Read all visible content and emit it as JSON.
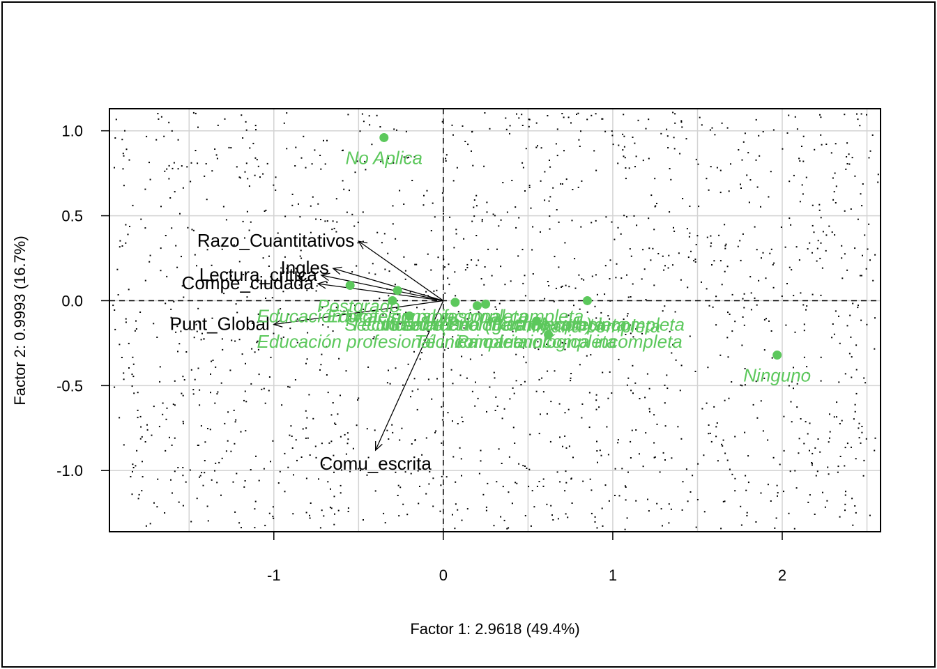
{
  "chart_data": {
    "type": "scatter",
    "title": "",
    "xlabel": "Factor 1: 2.9618 (49.4%)",
    "ylabel": "Factor 2: 0.9993 (16.7%)",
    "xlim": [
      -1.97,
      2.58
    ],
    "ylim": [
      -1.36,
      1.13
    ],
    "xticks": [
      -1,
      0,
      1,
      2
    ],
    "yticks": [
      1.0,
      0.5,
      0.0,
      -0.5,
      -1.0
    ],
    "xtick_labels": [
      "-1",
      "0",
      "1",
      "2"
    ],
    "ytick_labels": [
      "1.0",
      "0.5",
      "0.0",
      "-0.5",
      "-1.0"
    ],
    "grid": true,
    "reference_lines": {
      "x": 0,
      "y": 0,
      "style": "dashed"
    },
    "colors": {
      "categories": "#5cc85c",
      "variables": "#000000",
      "grid": "#d3d3d3"
    },
    "variables": [
      {
        "name": "Razo_Cuantitativos",
        "x": -0.5,
        "y": 0.35
      },
      {
        "name": "Ingles",
        "x": -0.65,
        "y": 0.19
      },
      {
        "name": "Lectura_critica",
        "x": -0.72,
        "y": 0.15
      },
      {
        "name": "Compe_ciudada",
        "x": -0.74,
        "y": 0.1
      },
      {
        "name": "Punt_Global",
        "x": -1.0,
        "y": -0.14
      },
      {
        "name": "Comu_escrita",
        "x": -0.4,
        "y": -0.88
      }
    ],
    "categories": [
      {
        "name": "No Aplica",
        "x": -0.35,
        "y": 0.96
      },
      {
        "name": "Ninguno",
        "x": 1.97,
        "y": -0.32
      },
      {
        "name": "Postgrado",
        "x": -0.55,
        "y": 0.09
      },
      {
        "name": "Educación profesional completa",
        "x": 0.07,
        "y": -0.01
      },
      {
        "name": "Educación profesional incompleta",
        "x": -0.3,
        "y": 0.0
      },
      {
        "name": "Técnica o tecnológica completa",
        "x": -0.27,
        "y": 0.06
      },
      {
        "name": "Técnica o tecnológica incompleta",
        "x": 0.2,
        "y": -0.03
      },
      {
        "name": "Secundaria (Bachillerato) completa",
        "x": 0.25,
        "y": -0.02
      },
      {
        "name": "Secundaria (Bachillerato) incompleta",
        "x": 0.55,
        "y": -0.12
      },
      {
        "name": "Primaria completa",
        "x": 0.62,
        "y": -0.2
      },
      {
        "name": "Primaria incompleta",
        "x": 0.85,
        "y": 0.0
      },
      {
        "name": "No sabe",
        "x": -0.2,
        "y": -0.09
      }
    ],
    "visible_category_labels": [
      {
        "text": "No Aplica",
        "x": -0.35,
        "y": 0.84
      },
      {
        "text": "Ninguno",
        "x": 1.97,
        "y": -0.44
      },
      {
        "text": "Postgrado",
        "x": -0.5,
        "y": -0.03
      },
      {
        "text": "Educación profesional completa",
        "x": 0.07,
        "y": -0.09
      },
      {
        "text": "Educación profesional incompleta",
        "x": -0.3,
        "y": -0.09
      },
      {
        "text": "Educación profesional incompleta",
        "x": -0.3,
        "y": -0.24
      },
      {
        "text": "Secundaria (Bachillerato) completa",
        "x": 0.25,
        "y": -0.14
      },
      {
        "text": "Secundaria (Bachillerato) incompleta",
        "x": 0.55,
        "y": -0.14
      },
      {
        "text": "Primaria incompleta",
        "x": 0.55,
        "y": -0.24
      },
      {
        "text": "Primaria completa",
        "x": 0.85,
        "y": -0.15
      },
      {
        "text": "Técnica o tecnológica completa",
        "x": 0.2,
        "y": -0.14
      },
      {
        "text": "Técnica o tecnológica incompleta",
        "x": 0.62,
        "y": -0.24
      },
      {
        "text": "No sabe",
        "x": -0.2,
        "y": -0.14
      }
    ],
    "individuals": "many small black points scattered across the plot"
  }
}
